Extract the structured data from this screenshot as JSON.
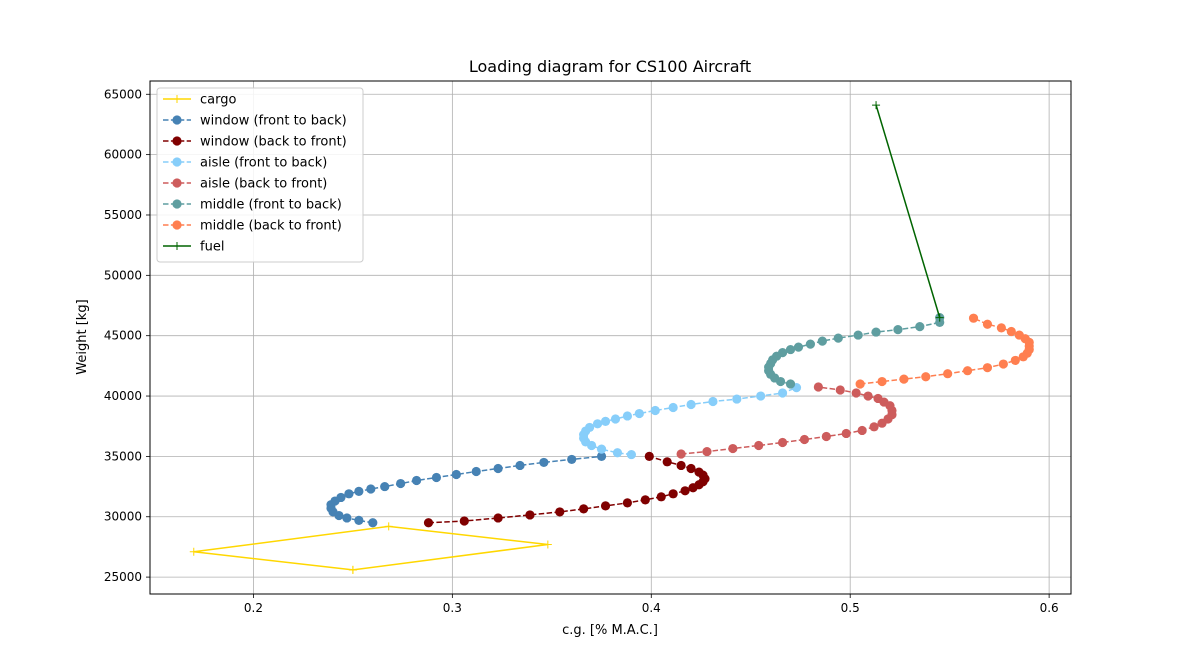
{
  "chart_data": {
    "type": "line",
    "title": "Loading diagram for CS100 Aircraft",
    "xlabel": "c.g. [% M.A.C.]",
    "ylabel": "Weight [kg]",
    "xlim": [
      0.148,
      0.611
    ],
    "ylim": [
      23600,
      66100
    ],
    "xticks": [
      0.2,
      0.3,
      0.4,
      0.5,
      0.6
    ],
    "xtick_labels": [
      "0.2",
      "0.3",
      "0.4",
      "0.5",
      "0.6"
    ],
    "yticks": [
      25000,
      30000,
      35000,
      40000,
      45000,
      50000,
      55000,
      60000,
      65000
    ],
    "ytick_labels": [
      "25000",
      "30000",
      "35000",
      "40000",
      "45000",
      "50000",
      "55000",
      "60000",
      "65000"
    ],
    "grid": true,
    "legend_position": "top-left",
    "series": [
      {
        "name": "cargo",
        "color": "#FFD700",
        "linestyle": "solid",
        "marker": "plus",
        "points": [
          [
            0.25,
            25600
          ],
          [
            0.17,
            27100
          ],
          [
            0.268,
            29200
          ],
          [
            0.348,
            27700
          ],
          [
            0.25,
            25600
          ]
        ]
      },
      {
        "name": "window (front to back)",
        "color": "#4682B4",
        "linestyle": "dashed",
        "marker": "circle",
        "points": [
          [
            0.26,
            29500
          ],
          [
            0.253,
            29700
          ],
          [
            0.247,
            29900
          ],
          [
            0.243,
            30100
          ],
          [
            0.24,
            30400
          ],
          [
            0.239,
            30700
          ],
          [
            0.239,
            31000
          ],
          [
            0.241,
            31300
          ],
          [
            0.244,
            31600
          ],
          [
            0.248,
            31900
          ],
          [
            0.253,
            32100
          ],
          [
            0.259,
            32300
          ],
          [
            0.266,
            32500
          ],
          [
            0.274,
            32750
          ],
          [
            0.282,
            33000
          ],
          [
            0.292,
            33250
          ],
          [
            0.302,
            33500
          ],
          [
            0.312,
            33750
          ],
          [
            0.323,
            34000
          ],
          [
            0.334,
            34250
          ],
          [
            0.346,
            34500
          ],
          [
            0.36,
            34750
          ],
          [
            0.375,
            35000
          ]
        ]
      },
      {
        "name": "window (back to front)",
        "color": "#800000",
        "linestyle": "dashed",
        "marker": "circle",
        "points": [
          [
            0.288,
            29500
          ],
          [
            0.306,
            29650
          ],
          [
            0.323,
            29900
          ],
          [
            0.339,
            30150
          ],
          [
            0.354,
            30400
          ],
          [
            0.366,
            30650
          ],
          [
            0.377,
            30900
          ],
          [
            0.388,
            31150
          ],
          [
            0.397,
            31400
          ],
          [
            0.405,
            31650
          ],
          [
            0.411,
            31900
          ],
          [
            0.417,
            32150
          ],
          [
            0.421,
            32400
          ],
          [
            0.424,
            32650
          ],
          [
            0.426,
            32900
          ],
          [
            0.427,
            33150
          ],
          [
            0.426,
            33450
          ],
          [
            0.424,
            33700
          ],
          [
            0.42,
            34000
          ],
          [
            0.415,
            34250
          ],
          [
            0.408,
            34550
          ],
          [
            0.399,
            35000
          ]
        ]
      },
      {
        "name": "aisle (front to back)",
        "color": "#87CEFA",
        "linestyle": "dashed",
        "marker": "circle",
        "points": [
          [
            0.39,
            35150
          ],
          [
            0.383,
            35300
          ],
          [
            0.375,
            35600
          ],
          [
            0.37,
            35900
          ],
          [
            0.367,
            36200
          ],
          [
            0.366,
            36500
          ],
          [
            0.366,
            36800
          ],
          [
            0.367,
            37100
          ],
          [
            0.369,
            37400
          ],
          [
            0.373,
            37700
          ],
          [
            0.377,
            37900
          ],
          [
            0.382,
            38100
          ],
          [
            0.388,
            38350
          ],
          [
            0.394,
            38550
          ],
          [
            0.402,
            38800
          ],
          [
            0.411,
            39050
          ],
          [
            0.42,
            39300
          ],
          [
            0.431,
            39550
          ],
          [
            0.443,
            39750
          ],
          [
            0.455,
            40000
          ],
          [
            0.466,
            40250
          ],
          [
            0.473,
            40700
          ]
        ]
      },
      {
        "name": "aisle (back to front)",
        "color": "#CD5C5C",
        "linestyle": "dashed",
        "marker": "circle",
        "points": [
          [
            0.415,
            35200
          ],
          [
            0.428,
            35400
          ],
          [
            0.441,
            35650
          ],
          [
            0.454,
            35900
          ],
          [
            0.466,
            36150
          ],
          [
            0.477,
            36400
          ],
          [
            0.488,
            36650
          ],
          [
            0.498,
            36900
          ],
          [
            0.506,
            37150
          ],
          [
            0.512,
            37450
          ],
          [
            0.516,
            37750
          ],
          [
            0.519,
            38100
          ],
          [
            0.521,
            38450
          ],
          [
            0.521,
            38800
          ],
          [
            0.52,
            39200
          ],
          [
            0.517,
            39500
          ],
          [
            0.514,
            39800
          ],
          [
            0.509,
            40000
          ],
          [
            0.503,
            40250
          ],
          [
            0.495,
            40500
          ],
          [
            0.484,
            40750
          ]
        ]
      },
      {
        "name": "middle (front to back)",
        "color": "#5F9EA0",
        "linestyle": "dashed",
        "marker": "circle",
        "points": [
          [
            0.47,
            41000
          ],
          [
            0.465,
            41200
          ],
          [
            0.462,
            41500
          ],
          [
            0.46,
            41800
          ],
          [
            0.459,
            42100
          ],
          [
            0.459,
            42400
          ],
          [
            0.46,
            42700
          ],
          [
            0.461,
            43000
          ],
          [
            0.463,
            43300
          ],
          [
            0.466,
            43600
          ],
          [
            0.47,
            43850
          ],
          [
            0.474,
            44050
          ],
          [
            0.48,
            44300
          ],
          [
            0.486,
            44550
          ],
          [
            0.494,
            44800
          ],
          [
            0.504,
            45050
          ],
          [
            0.513,
            45300
          ],
          [
            0.524,
            45500
          ],
          [
            0.535,
            45750
          ],
          [
            0.545,
            46100
          ],
          [
            0.545,
            46500
          ]
        ]
      },
      {
        "name": "middle (back to front)",
        "color": "#FF7F50",
        "linestyle": "dashed",
        "marker": "circle",
        "points": [
          [
            0.505,
            41000
          ],
          [
            0.516,
            41200
          ],
          [
            0.527,
            41400
          ],
          [
            0.538,
            41600
          ],
          [
            0.549,
            41850
          ],
          [
            0.559,
            42100
          ],
          [
            0.569,
            42350
          ],
          [
            0.577,
            42650
          ],
          [
            0.583,
            42950
          ],
          [
            0.587,
            43250
          ],
          [
            0.589,
            43550
          ],
          [
            0.59,
            43850
          ],
          [
            0.59,
            44150
          ],
          [
            0.59,
            44450
          ],
          [
            0.588,
            44750
          ],
          [
            0.585,
            45050
          ],
          [
            0.581,
            45350
          ],
          [
            0.576,
            45650
          ],
          [
            0.569,
            45950
          ],
          [
            0.562,
            46450
          ]
        ]
      },
      {
        "name": "fuel",
        "color": "#006400",
        "linestyle": "solid",
        "marker": "plus",
        "points": [
          [
            0.545,
            46500
          ],
          [
            0.513,
            64100
          ]
        ]
      }
    ]
  }
}
